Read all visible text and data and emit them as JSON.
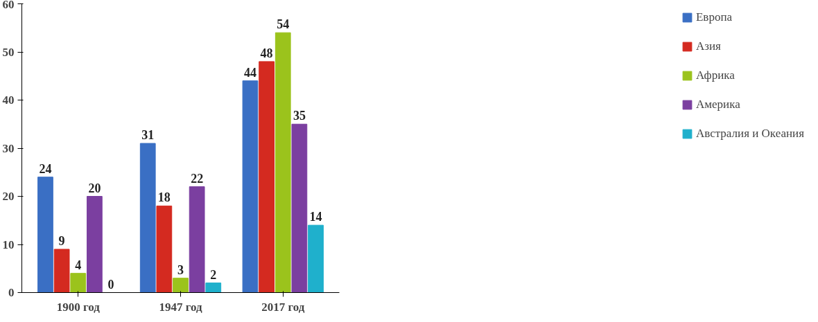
{
  "chart_data": {
    "type": "bar",
    "categories": [
      "1900 год",
      "1947 год",
      "2017 год"
    ],
    "series": [
      {
        "name": "Европа",
        "color": "#3a6fc4",
        "values": [
          24,
          31,
          44
        ]
      },
      {
        "name": "Азия",
        "color": "#d42a20",
        "values": [
          9,
          18,
          48
        ]
      },
      {
        "name": "Африка",
        "color": "#9bc31c",
        "values": [
          4,
          3,
          54
        ]
      },
      {
        "name": "Америка",
        "color": "#7b3fa0",
        "values": [
          20,
          22,
          35
        ]
      },
      {
        "name": "Австралия и Океания",
        "color": "#1fb0cc",
        "values": [
          0,
          2,
          14
        ]
      }
    ],
    "ylim": [
      0,
      60
    ],
    "yticks": [
      0,
      10,
      20,
      30,
      40,
      50,
      60
    ],
    "grid": false,
    "legend": "right",
    "data_labels": true
  }
}
